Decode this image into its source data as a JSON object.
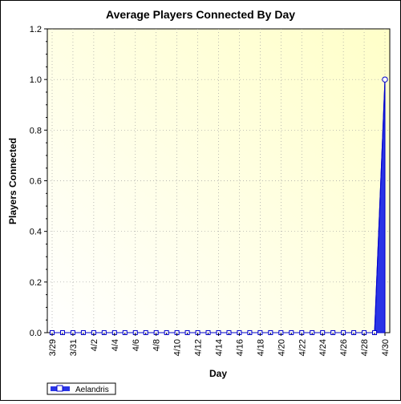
{
  "chart_data": {
    "type": "area",
    "title": "Average Players Connected By Day",
    "xlabel": "Day",
    "ylabel": "Players Connected",
    "ylim": [
      0,
      1.2
    ],
    "yticks": [
      0.0,
      0.2,
      0.4,
      0.6,
      0.8,
      1.0,
      1.2
    ],
    "ytick_labels": [
      "0.0",
      "0.2",
      "0.4",
      "0.6",
      "0.8",
      "1.0",
      "1.2"
    ],
    "x": [
      "3/29",
      "3/30",
      "3/31",
      "4/1",
      "4/2",
      "4/3",
      "4/4",
      "4/5",
      "4/6",
      "4/7",
      "4/8",
      "4/9",
      "4/10",
      "4/11",
      "4/12",
      "4/13",
      "4/14",
      "4/15",
      "4/16",
      "4/17",
      "4/18",
      "4/19",
      "4/20",
      "4/21",
      "4/22",
      "4/23",
      "4/24",
      "4/25",
      "4/26",
      "4/27",
      "4/28",
      "4/29",
      "4/30"
    ],
    "xtick_labels": [
      "3/29",
      "3/31",
      "4/2",
      "4/4",
      "4/6",
      "4/8",
      "4/10",
      "4/12",
      "4/14",
      "4/16",
      "4/18",
      "4/20",
      "4/22",
      "4/24",
      "4/26",
      "4/28",
      "4/30"
    ],
    "series": [
      {
        "name": "Aelandris",
        "values": [
          0,
          0,
          0,
          0,
          0,
          0,
          0,
          0,
          0,
          0,
          0,
          0,
          0,
          0,
          0,
          0,
          0,
          0,
          0,
          0,
          0,
          0,
          0,
          0,
          0,
          0,
          0,
          0,
          0,
          0,
          0,
          0,
          1.0
        ]
      }
    ],
    "grid": true,
    "legend_position": "bottom-left",
    "colors": {
      "series_fill": "#2a35e6",
      "series_line": "#0000cc",
      "plot_bg_start": "#ffffff",
      "plot_bg_end": "#ffffc8",
      "grid": "#a0a0a0",
      "marker_fill": "#ffffff"
    }
  }
}
